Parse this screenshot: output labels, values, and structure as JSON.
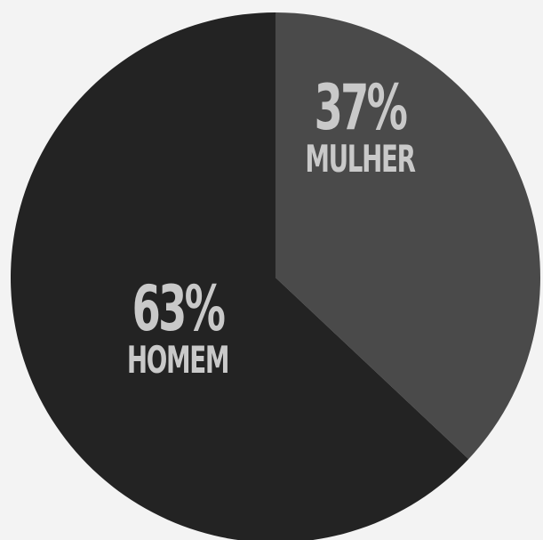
{
  "chart_data": {
    "type": "pie",
    "slices": [
      {
        "label": "MULHER",
        "value": 37,
        "display": "37%",
        "color": "#4a4a4a"
      },
      {
        "label": "HOMEM",
        "value": 63,
        "display": "63%",
        "color": "#232323"
      }
    ],
    "label_color": "#c9c9c9",
    "background": "#f3f3f3"
  }
}
